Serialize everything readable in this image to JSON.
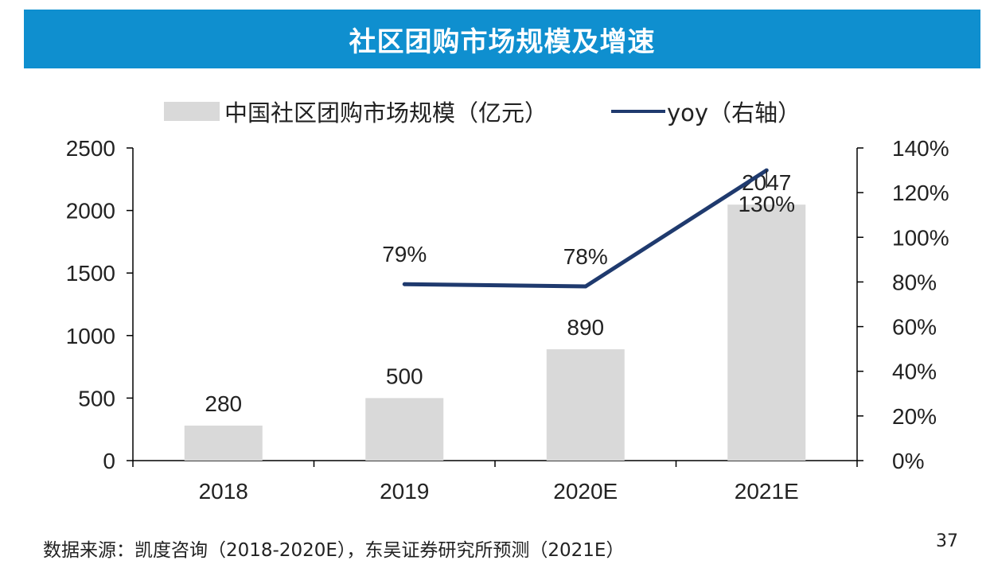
{
  "header": {
    "title": "社区团购市场规模及增速"
  },
  "chart_data": {
    "type": "bar",
    "title": "社区团购市场规模及增速",
    "categories": [
      "2018",
      "2019",
      "2020E",
      "2021E"
    ],
    "series": [
      {
        "name": "中国社区团购市场规模（亿元）",
        "type": "bar",
        "axis": "left",
        "values": [
          280,
          500,
          890,
          2047
        ],
        "labels": [
          "280",
          "500",
          "890",
          "2047"
        ]
      },
      {
        "name": "yoy（右轴）",
        "type": "line",
        "axis": "right",
        "values": [
          null,
          79,
          78,
          130
        ],
        "labels": [
          "",
          "79%",
          "78%",
          "130%"
        ]
      }
    ],
    "left_axis": {
      "ylim": [
        0,
        2500
      ],
      "ticks": [
        0,
        500,
        1000,
        1500,
        2000,
        2500
      ],
      "tick_labels": [
        "0",
        "500",
        "1000",
        "1500",
        "2000",
        "2500"
      ]
    },
    "right_axis": {
      "ylim": [
        0,
        140
      ],
      "ticks": [
        0,
        20,
        40,
        60,
        80,
        100,
        120,
        140
      ],
      "tick_labels": [
        "0%",
        "20%",
        "40%",
        "60%",
        "80%",
        "100%",
        "120%",
        "140%"
      ]
    },
    "legend_position": "top",
    "grid": false,
    "colors": {
      "bar": "#d9d9d9",
      "line": "#1f3a6e",
      "axis": "#000000"
    }
  },
  "footer": {
    "source": "数据来源：凯度咨询（2018-2020E），东吴证券研究所预测（2021E）",
    "page_number": "37"
  }
}
